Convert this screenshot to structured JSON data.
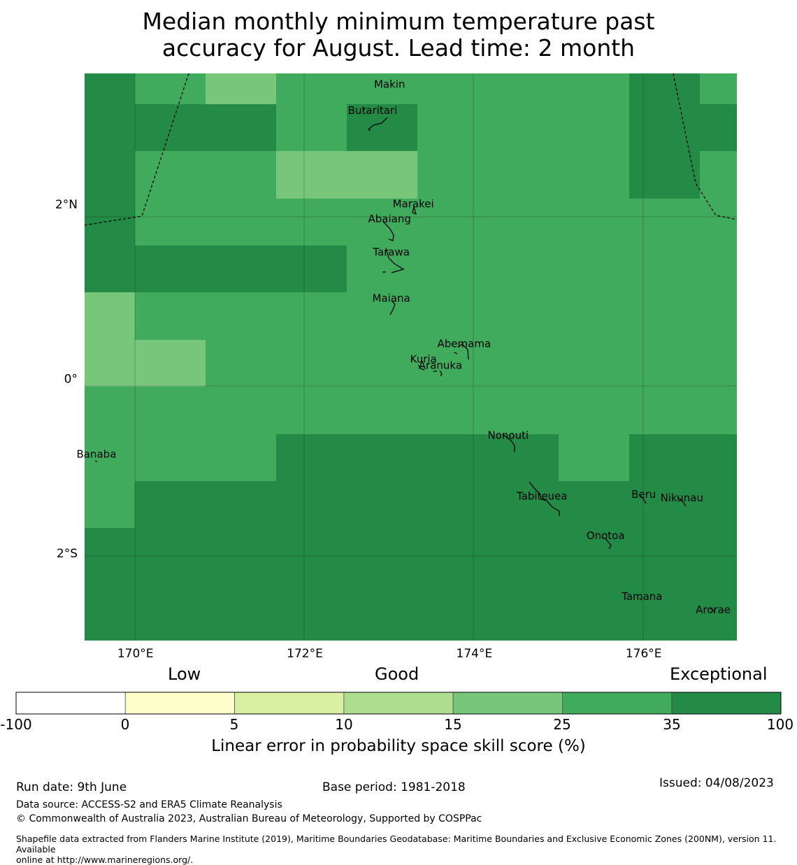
{
  "title_line1": "Median monthly minimum temperature past",
  "title_line2": "accuracy for August. Lead time: 2 month",
  "map": {
    "lon_range": [
      169.4,
      177.1
    ],
    "lat_range": [
      -3.0,
      3.5
    ],
    "x_ticks": [
      {
        "value": 170,
        "label": "170°E"
      },
      {
        "value": 172,
        "label": "172°E"
      },
      {
        "value": 174,
        "label": "174°E"
      },
      {
        "value": 176,
        "label": "176°E"
      }
    ],
    "y_ticks": [
      {
        "value": 2,
        "label": "2°N"
      },
      {
        "value": 0,
        "label": "0°"
      },
      {
        "value": -2,
        "label": "2°S"
      }
    ],
    "color_scale": {
      "exceptional": "#238b45",
      "very_good": "#41ab5d",
      "good": "#78c679"
    },
    "places": [
      {
        "name": "Makin",
        "lon": 173.0,
        "lat": 3.37
      },
      {
        "name": "Butaritari",
        "lon": 172.8,
        "lat": 3.07
      },
      {
        "name": "Marakei",
        "lon": 173.28,
        "lat": 2.0
      },
      {
        "name": "Abaiang",
        "lon": 173.0,
        "lat": 1.83
      },
      {
        "name": "Tarawa",
        "lon": 173.02,
        "lat": 1.45
      },
      {
        "name": "Maiana",
        "lon": 173.02,
        "lat": 0.92
      },
      {
        "name": "Abemama",
        "lon": 173.88,
        "lat": 0.4
      },
      {
        "name": "Kuria",
        "lon": 173.4,
        "lat": 0.22
      },
      {
        "name": "Aranuka",
        "lon": 173.6,
        "lat": 0.15
      },
      {
        "name": "Banaba",
        "lon": 169.54,
        "lat": -0.87
      },
      {
        "name": "Nonouti",
        "lon": 174.4,
        "lat": -0.65
      },
      {
        "name": "Tabiteuea",
        "lon": 174.8,
        "lat": -1.35
      },
      {
        "name": "Beru",
        "lon": 176.0,
        "lat": -1.33
      },
      {
        "name": "Nikunau",
        "lon": 176.45,
        "lat": -1.37
      },
      {
        "name": "Onotoa",
        "lon": 175.55,
        "lat": -1.8
      },
      {
        "name": "Tamana",
        "lon": 175.98,
        "lat": -2.5
      },
      {
        "name": "Arorae",
        "lon": 176.82,
        "lat": -2.65
      }
    ]
  },
  "colorbar": {
    "headings": [
      "Low",
      "Good",
      "Exceptional"
    ],
    "ticks": [
      "-100",
      "0",
      "5",
      "10",
      "15",
      "25",
      "35",
      "100"
    ],
    "colors": [
      "#ffffff",
      "#ffffcc",
      "#d9f0a3",
      "#addd8e",
      "#78c679",
      "#41ab5d",
      "#238b45"
    ],
    "label": "Linear error in probability space skill score (%)"
  },
  "footer": {
    "run_date": "Run date: 9th June",
    "base_period": "Base period: 1981-2018",
    "issued": "Issued: 04/08/2023",
    "data_source": "Data source: ACCESS-S2 and ERA5 Climate Reanalysis",
    "copyright": "© Commonwealth of Australia 2023, Australian Bureau of Meteorology, Supported by COSPPac",
    "shapefile_line1": "Shapefile data extracted from Flanders Marine Institute (2019), Maritime Boundaries Geodatabase: Maritime Boundaries and Exclusive Economic Zones (200NM), version 11. Available",
    "shapefile_line2": "online at http://www.marineregions.org/."
  }
}
